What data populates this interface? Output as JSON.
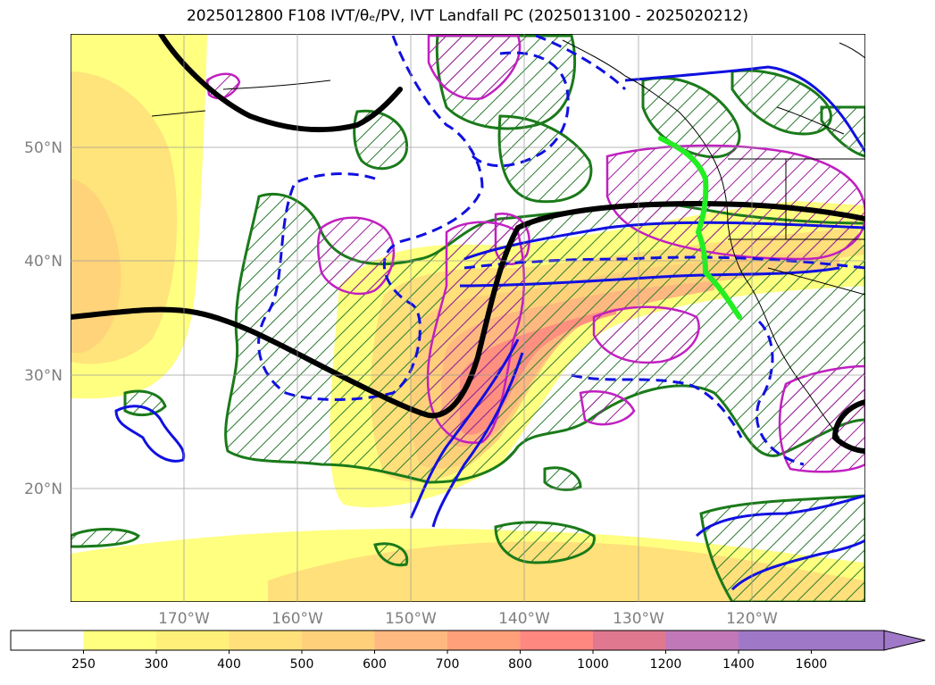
{
  "title": "2025012800 F108 IVT/θₑ/PV, IVT Landfall PC (2025013100 - 2025020212)",
  "map": {
    "lat_labels": [
      "50°N",
      "40°N",
      "30°N",
      "20°N"
    ],
    "lon_labels": [
      "170°W",
      "160°W",
      "150°W",
      "140°W",
      "130°W",
      "120°W"
    ],
    "lat_range": [
      10,
      60
    ],
    "lon_range": [
      -180,
      -110
    ],
    "fields": [
      {
        "name": "IVT",
        "style": "filled contours (yellow-orange-red)"
      },
      {
        "name": "theta_e",
        "style": "blue solid/dashed contours"
      },
      {
        "name": "PV",
        "style": "green contours with hatching"
      },
      {
        "name": "IVT Landfall PC",
        "style": "magenta contours with hatching"
      },
      {
        "name": "thick black line",
        "style": "reference contour"
      },
      {
        "name": "bright green line",
        "style": "landfall path"
      }
    ]
  },
  "colorbar": {
    "levels": [
      "250",
      "300",
      "400",
      "500",
      "600",
      "700",
      "800",
      "1000",
      "1200",
      "1400",
      "1600"
    ],
    "colors": [
      "#ffffff",
      "#ffff80",
      "#fff07a",
      "#ffe07a",
      "#ffd07a",
      "#ffb880",
      "#ffa07a",
      "#ff8880",
      "#e07890",
      "#c078b8",
      "#a078c8",
      "#a078c8"
    ],
    "extend": "max"
  }
}
